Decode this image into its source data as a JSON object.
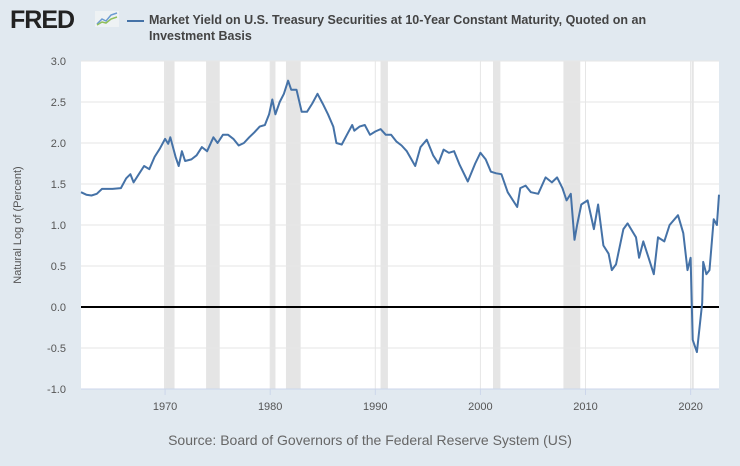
{
  "header": {
    "logo": "FRED",
    "title": "Market Yield on U.S. Treasury Securities at 10-Year Constant Maturity, Quoted on an Investment Basis"
  },
  "footer": {
    "source": "Source: Board of Governors of the Federal Reserve System (US)"
  },
  "colors": {
    "background": "#e1e9f0",
    "series": "#4572a7",
    "recession": "#e5e5e5",
    "zero_line": "#000000"
  },
  "chart_data": {
    "type": "line",
    "title": "Market Yield on U.S. Treasury Securities at 10-Year Constant Maturity, Quoted on an Investment Basis",
    "xlabel": "",
    "ylabel": "Natural Log of (Percent)",
    "xlim": [
      1962,
      2022.7
    ],
    "ylim": [
      -1.0,
      3.0
    ],
    "x_ticks": [
      "1970",
      "1980",
      "1990",
      "2000",
      "2010",
      "2020"
    ],
    "y_ticks": [
      "3.0",
      "2.5",
      "2.0",
      "1.5",
      "1.0",
      "0.5",
      "0.0",
      "-0.5",
      "-1.0"
    ],
    "grid": true,
    "legend": "top",
    "recessions": [
      [
        1969.9,
        1970.9
      ],
      [
        1973.9,
        1975.2
      ],
      [
        1980.0,
        1980.5
      ],
      [
        1981.5,
        1982.9
      ],
      [
        1990.5,
        1991.2
      ],
      [
        2001.2,
        2001.9
      ],
      [
        2007.9,
        2009.5
      ],
      [
        2020.1,
        2020.3
      ]
    ],
    "series": [
      {
        "name": "Market Yield on U.S. Treasury Securities at 10-Year Constant Maturity, Quoted on an Investment Basis",
        "x": [
          1962.0,
          1962.5,
          1963,
          1963.5,
          1964,
          1965,
          1965.8,
          1966.3,
          1966.7,
          1967,
          1967.5,
          1968,
          1968.5,
          1969,
          1969.5,
          1970,
          1970.3,
          1970.5,
          1971,
          1971.3,
          1971.6,
          1971.9,
          1972.5,
          1973,
          1973.5,
          1974,
          1974.6,
          1975,
          1975.5,
          1976,
          1976.5,
          1977,
          1977.5,
          1978,
          1978.5,
          1979,
          1979.5,
          1979.9,
          1980.2,
          1980.5,
          1980.9,
          1981.3,
          1981.7,
          1982,
          1982.5,
          1983,
          1983.5,
          1984,
          1984.5,
          1985,
          1985.5,
          1986,
          1986.3,
          1986.8,
          1987.3,
          1987.8,
          1988,
          1988.5,
          1989,
          1989.5,
          1990,
          1990.5,
          1991,
          1991.5,
          1992,
          1992.5,
          1993,
          1993.8,
          1994.3,
          1994.9,
          1995.5,
          1996,
          1996.5,
          1997,
          1997.5,
          1998,
          1998.8,
          1999.5,
          2000,
          2000.5,
          2001,
          2001.5,
          2002,
          2002.6,
          2003.5,
          2003.8,
          2004.3,
          2004.8,
          2005.5,
          2006.2,
          2006.8,
          2007.3,
          2007.8,
          2008.2,
          2008.6,
          2008.95,
          2009.2,
          2009.6,
          2010.2,
          2010.8,
          2011.2,
          2011.7,
          2012.2,
          2012.5,
          2012.9,
          2013.6,
          2014,
          2014.8,
          2015.1,
          2015.5,
          2016,
          2016.5,
          2016.9,
          2017.5,
          2018.0,
          2018.8,
          2019.3,
          2019.7,
          2020.0,
          2020.2,
          2020.6,
          2021.1,
          2021.2,
          2021.5,
          2021.8,
          2022.2,
          2022.5,
          2022.7
        ],
        "y": [
          1.4,
          1.37,
          1.36,
          1.38,
          1.44,
          1.44,
          1.45,
          1.57,
          1.62,
          1.52,
          1.62,
          1.72,
          1.68,
          1.83,
          1.93,
          2.05,
          1.99,
          2.07,
          1.83,
          1.72,
          1.9,
          1.78,
          1.8,
          1.85,
          1.95,
          1.9,
          2.07,
          2.0,
          2.1,
          2.1,
          2.05,
          1.97,
          2.0,
          2.07,
          2.13,
          2.2,
          2.22,
          2.35,
          2.53,
          2.35,
          2.5,
          2.6,
          2.76,
          2.65,
          2.65,
          2.38,
          2.38,
          2.48,
          2.6,
          2.48,
          2.35,
          2.2,
          2.0,
          1.98,
          2.1,
          2.22,
          2.15,
          2.2,
          2.22,
          2.1,
          2.14,
          2.17,
          2.1,
          2.1,
          2.02,
          1.97,
          1.9,
          1.72,
          1.95,
          2.04,
          1.85,
          1.75,
          1.92,
          1.88,
          1.9,
          1.74,
          1.53,
          1.75,
          1.88,
          1.8,
          1.65,
          1.63,
          1.62,
          1.4,
          1.22,
          1.45,
          1.48,
          1.4,
          1.38,
          1.58,
          1.52,
          1.58,
          1.45,
          1.3,
          1.38,
          0.82,
          1.0,
          1.25,
          1.3,
          0.95,
          1.25,
          0.75,
          0.65,
          0.45,
          0.52,
          0.95,
          1.02,
          0.85,
          0.6,
          0.8,
          0.6,
          0.4,
          0.85,
          0.8,
          1.0,
          1.12,
          0.9,
          0.45,
          0.6,
          -0.4,
          -0.55,
          0.05,
          0.55,
          0.4,
          0.45,
          1.07,
          1.0,
          1.37
        ]
      }
    ]
  }
}
